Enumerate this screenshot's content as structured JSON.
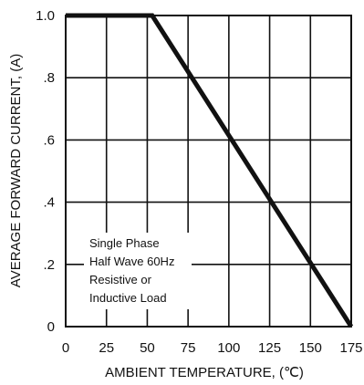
{
  "chart_data": {
    "type": "line",
    "title": "",
    "xlabel": "AMBIENT TEMPERATURE, (℃)",
    "ylabel": "AVERAGE FORWARD CURRENT, (A)",
    "xlim": [
      0,
      175
    ],
    "ylim": [
      0,
      1.0
    ],
    "x_ticks": [
      0,
      25,
      50,
      75,
      100,
      125,
      150,
      175
    ],
    "x_tick_labels": [
      "0",
      "25",
      "50",
      "75",
      "100",
      "125",
      "150",
      "175"
    ],
    "y_ticks": [
      0,
      0.2,
      0.4,
      0.6,
      0.8,
      1.0
    ],
    "y_tick_labels": [
      "0",
      ".2",
      ".4",
      ".6",
      ".8",
      "1.0"
    ],
    "grid": true,
    "series": [
      {
        "x": [
          0,
          53,
          175
        ],
        "y": [
          1.0,
          1.0,
          0
        ]
      }
    ],
    "annotation": [
      "Single Phase",
      "Half Wave 60Hz",
      "Resistive or",
      "Inductive Load"
    ],
    "colors": {
      "line": "#111111",
      "grid": "#111111",
      "background": "#ffffff"
    }
  }
}
